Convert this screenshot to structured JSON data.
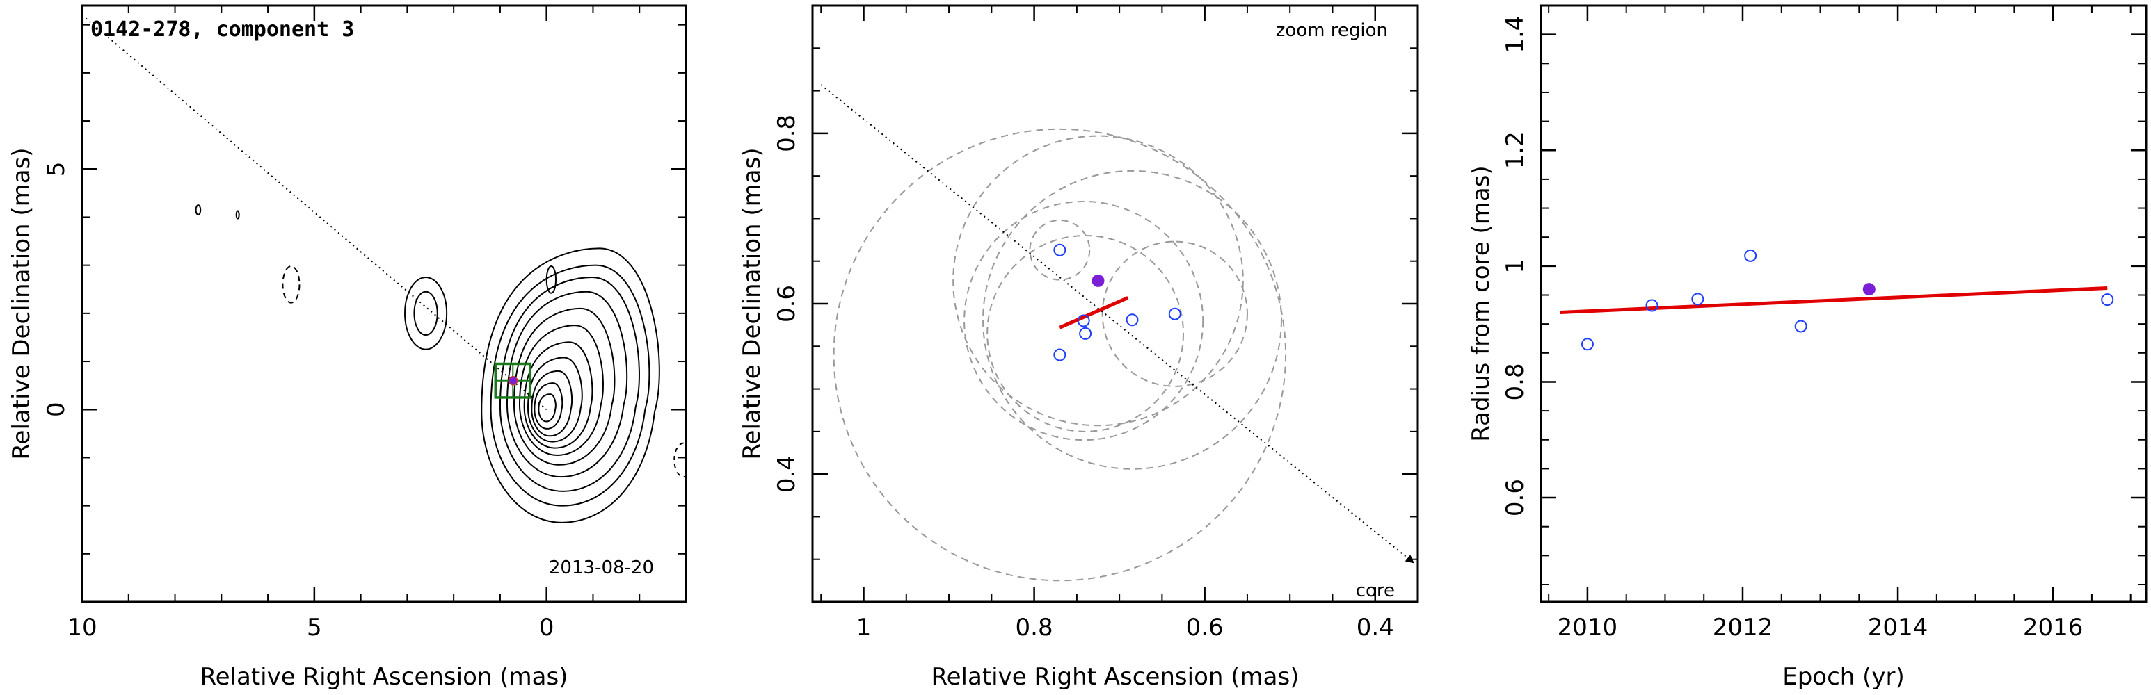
{
  "chart_data": [
    {
      "type": "contour",
      "title": "0142-278, component 3",
      "annotation": "2013-08-20",
      "xlabel": "Relative Right Ascension (mas)",
      "ylabel": "Relative Declination (mas)",
      "xlim": [
        10,
        -3
      ],
      "ylim": [
        -4,
        8.4
      ],
      "xticks": [
        10,
        5,
        0
      ],
      "yticks": [
        0,
        5
      ],
      "core": {
        "x": 0,
        "y": 0
      },
      "component": {
        "x": 0.72,
        "y": 0.6
      },
      "zoom_box": {
        "x": [
          0.35,
          1.1
        ],
        "y": [
          0.25,
          0.95
        ]
      },
      "direction_line": {
        "from": [
          10,
          8.2
        ],
        "to": [
          0,
          0
        ]
      },
      "colors": {
        "contour": "#000000",
        "zoom_box": "#1a7a1a",
        "component": "#7b1fd6"
      }
    },
    {
      "type": "scatter",
      "annotation_top": "zoom region",
      "annotation_bottom": "core",
      "xlabel": "Relative Right Ascension (mas)",
      "ylabel": "Relative Declination (mas)",
      "xlim": [
        1.06,
        0.35
      ],
      "ylim": [
        0.25,
        0.95
      ],
      "xticks": [
        1,
        0.8,
        0.6,
        0.4
      ],
      "yticks": [
        0.4,
        0.6,
        0.8
      ],
      "points": [
        {
          "x": 0.77,
          "y": 0.663
        },
        {
          "x": 0.742,
          "y": 0.58
        },
        {
          "x": 0.74,
          "y": 0.565
        },
        {
          "x": 0.77,
          "y": 0.54
        },
        {
          "x": 0.685,
          "y": 0.581
        },
        {
          "x": 0.635,
          "y": 0.588
        }
      ],
      "highlight": {
        "x": 0.725,
        "y": 0.627
      },
      "fit_segment": {
        "x": [
          0.77,
          0.69
        ],
        "y": [
          0.572,
          0.607
        ]
      },
      "circles": [
        {
          "x": 0.77,
          "y": 0.663,
          "r": 0.035
        },
        {
          "x": 0.742,
          "y": 0.58,
          "r": 0.14
        },
        {
          "x": 0.74,
          "y": 0.565,
          "r": 0.115
        },
        {
          "x": 0.77,
          "y": 0.54,
          "r": 0.265
        },
        {
          "x": 0.685,
          "y": 0.581,
          "r": 0.175
        },
        {
          "x": 0.635,
          "y": 0.588,
          "r": 0.085
        },
        {
          "x": 0.725,
          "y": 0.627,
          "r": 0.17
        }
      ],
      "direction_line": {
        "from": [
          1.05,
          0.857
        ],
        "to": [
          0.355,
          0.296
        ]
      },
      "colors": {
        "points": "#1f3fff",
        "highlight": "#7b1fd6",
        "fit": "#e00000",
        "circles": "#999999"
      }
    },
    {
      "type": "scatter",
      "xlabel": "Epoch (yr)",
      "ylabel": "Radius from core (mas)",
      "xlim": [
        2009.4,
        2017.2
      ],
      "ylim": [
        0.42,
        1.45
      ],
      "xticks": [
        2010,
        2012,
        2014,
        2016
      ],
      "yticks": [
        0.6,
        0.8,
        1,
        1.2,
        1.4
      ],
      "points": [
        {
          "x": 2010.0,
          "y": 0.865
        },
        {
          "x": 2010.83,
          "y": 0.932
        },
        {
          "x": 2011.42,
          "y": 0.943
        },
        {
          "x": 2012.1,
          "y": 1.018
        },
        {
          "x": 2012.75,
          "y": 0.896
        },
        {
          "x": 2016.7,
          "y": 0.942
        }
      ],
      "highlight": {
        "x": 2013.63,
        "y": 0.96
      },
      "fit_line": {
        "x": [
          2009.65,
          2016.7
        ],
        "y": [
          0.92,
          0.962
        ]
      },
      "colors": {
        "points": "#1f3fff",
        "highlight": "#7b1fd6",
        "fit": "#e00000"
      }
    }
  ]
}
